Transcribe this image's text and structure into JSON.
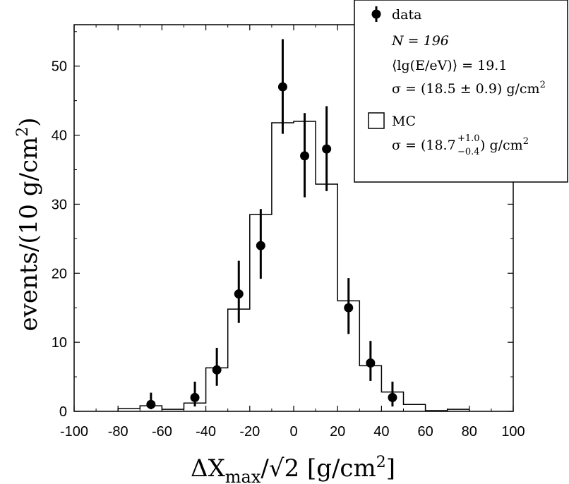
{
  "chart_data": {
    "type": "histogram",
    "xlabel": "ΔX",
    "xlabel_sub": "max",
    "xlabel_tail": "/√2 [g/cm",
    "xlabel_sup": "2",
    "xlabel_end": "]",
    "ylabel": "events/(10 g/cm",
    "ylabel_sup": "2",
    "ylabel_end": ")",
    "xlim": [
      -100,
      100
    ],
    "ylim": [
      0,
      56
    ],
    "x_ticks": [
      "-100",
      "-80",
      "-60",
      "-40",
      "-20",
      "0",
      "20",
      "40",
      "60",
      "80",
      "100"
    ],
    "x_tick_values": [
      -100,
      -80,
      -60,
      -40,
      -20,
      0,
      20,
      40,
      60,
      80,
      100
    ],
    "y_ticks": [
      "0",
      "10",
      "20",
      "30",
      "40",
      "50"
    ],
    "y_tick_values": [
      0,
      10,
      20,
      30,
      40,
      50
    ],
    "series": [
      {
        "name": "data",
        "kind": "points",
        "x": [
          -65,
          -45,
          -35,
          -25,
          -15,
          -5,
          5,
          15,
          25,
          35,
          45
        ],
        "y": [
          1,
          2,
          6,
          17,
          24,
          47,
          37,
          38,
          15,
          7,
          2
        ],
        "err_low": [
          0.7,
          1.3,
          2.3,
          4.2,
          4.8,
          6.8,
          6.0,
          6.1,
          3.8,
          2.6,
          1.3
        ],
        "err_high": [
          1.7,
          2.3,
          3.2,
          4.8,
          5.3,
          6.9,
          6.2,
          6.2,
          4.3,
          3.2,
          2.3
        ]
      },
      {
        "name": "MC",
        "kind": "step",
        "edges": [
          -80,
          -70,
          -60,
          -50,
          -40,
          -30,
          -20,
          -10,
          0,
          10,
          20,
          30,
          40,
          50,
          60,
          70,
          80
        ],
        "counts": [
          0.4,
          0.8,
          0.3,
          1.2,
          6.3,
          14.8,
          28.5,
          41.8,
          42.0,
          32.9,
          16.0,
          6.6,
          2.8,
          1.0,
          0.1,
          0.3
        ]
      }
    ],
    "legend": {
      "placement": "top-right",
      "data_label": "data",
      "n_text": "N = 196",
      "energy_text": "⟨lg(E/eV)⟩ = 19.1",
      "sigma_data_text": "σ = (18.5 ± 0.9) g/cm",
      "sigma_data_sup": "2",
      "mc_label": "MC",
      "sigma_mc_prefix": "σ = (18.7",
      "sigma_mc_sup": "+1.0",
      "sigma_mc_sub": "−0.4",
      "sigma_mc_suffix": ") g/cm",
      "sigma_mc_unit_sup": "2"
    }
  }
}
